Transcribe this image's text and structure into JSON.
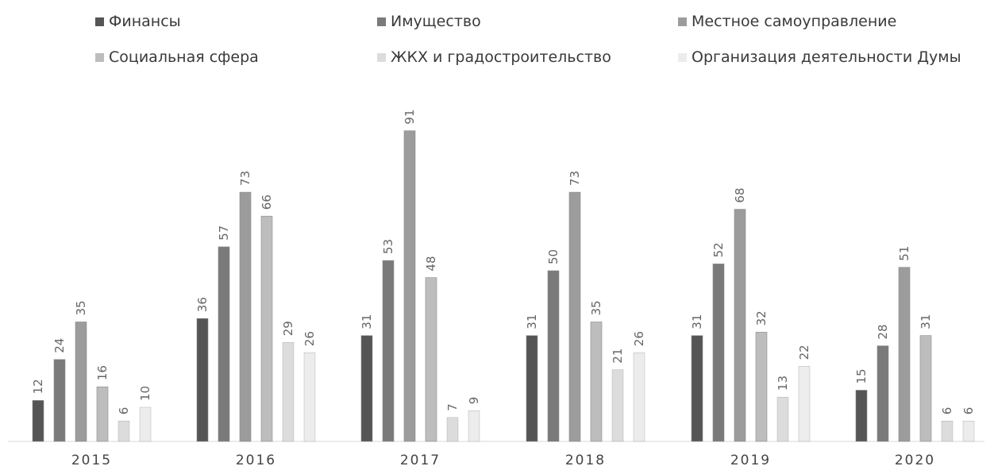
{
  "chart_data": {
    "type": "bar",
    "categories": [
      "2015",
      "2016",
      "2017",
      "2018",
      "2019",
      "2020"
    ],
    "series": [
      {
        "name": "Финансы",
        "color": "#555555",
        "values": [
          12,
          36,
          31,
          31,
          31,
          15
        ]
      },
      {
        "name": "Имущество",
        "color": "#7a7a7a",
        "values": [
          24,
          57,
          53,
          50,
          52,
          28
        ]
      },
      {
        "name": "Местное самоуправление",
        "color": "#9c9c9c",
        "values": [
          35,
          73,
          91,
          73,
          68,
          51
        ]
      },
      {
        "name": "Социальная сфера",
        "color": "#bdbdbd",
        "values": [
          16,
          66,
          48,
          35,
          32,
          31
        ]
      },
      {
        "name": "ЖКХ и градостроительство",
        "color": "#dcdcdc",
        "values": [
          6,
          29,
          7,
          21,
          13,
          6
        ]
      },
      {
        "name": "Организация деятельности Думы",
        "color": "#ececec",
        "values": [
          10,
          26,
          9,
          26,
          22,
          6
        ]
      }
    ],
    "ylim": [
      0,
      100
    ],
    "grid": false,
    "legend_position": "top",
    "data_labels": true
  }
}
